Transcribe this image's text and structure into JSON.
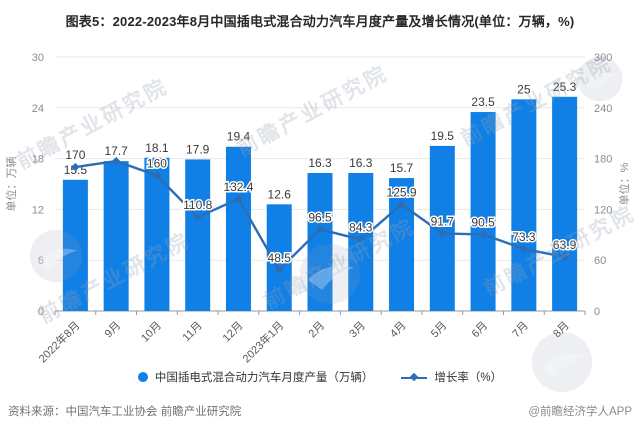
{
  "title": "图表5：2022-2023年8月中国插电式混合动力汽车月度产量及增长情况(单位：万辆，%)",
  "chart_data": {
    "type": "bar",
    "categories": [
      "2022年8月",
      "9月",
      "10月",
      "11月",
      "12月",
      "2023年1月",
      "2月",
      "3月",
      "4月",
      "5月",
      "6月",
      "7月",
      "8月"
    ],
    "series": [
      {
        "name": "中国插电式混合动力汽车月度产量（万辆）",
        "type": "bar",
        "axis": "left",
        "values": [
          15.5,
          17.7,
          18.1,
          17.9,
          19.4,
          12.6,
          16.3,
          16.3,
          15.7,
          19.5,
          23.5,
          25,
          25.3
        ],
        "labels": [
          "15.5",
          "17.7",
          "18.1",
          "17.9",
          "19.4",
          "12.6",
          "16.3",
          "16.3",
          "15.7",
          "19.5",
          "23.5",
          "25",
          "25.3"
        ]
      },
      {
        "name": "增长率（%）",
        "type": "line",
        "axis": "right",
        "values": [
          170,
          177,
          160,
          110.8,
          132.4,
          48.5,
          96.5,
          84.3,
          125.9,
          91.7,
          90.5,
          73.3,
          63.9
        ],
        "labels": [
          "170",
          "",
          "160",
          "110.8",
          "132.4",
          "48.5",
          "96.5",
          "84.3",
          "125.9",
          "91.7",
          "90.5",
          "73.3",
          "63.9"
        ]
      }
    ],
    "left_axis": {
      "title": "单位：万辆",
      "ticks": [
        0,
        6,
        12,
        18,
        24,
        30
      ],
      "max": 30
    },
    "right_axis": {
      "title": "单位：%",
      "ticks": [
        0,
        60,
        120,
        180,
        240,
        300
      ],
      "max": 300
    },
    "grid": true,
    "legend_position": "bottom"
  },
  "legend": {
    "bar_label": "中国插电式混合动力汽车月度产量（万辆）",
    "line_label": "增长率（%）"
  },
  "footer": {
    "source": "资料来源：中国汽车工业协会 前瞻产业研究院",
    "credit": "@前瞻经济学人APP"
  },
  "watermark": {
    "text": "前瞻产业研究院"
  },
  "colors": {
    "bar": "#1180E6",
    "line": "#2C6DB6",
    "grid": "#E8E8E8",
    "axis_line": "#999999",
    "axis_text": "#8C8C8C",
    "xlabel_text": "#595959",
    "label_text": "#3A3A3A",
    "title_text": "#26272B"
  }
}
